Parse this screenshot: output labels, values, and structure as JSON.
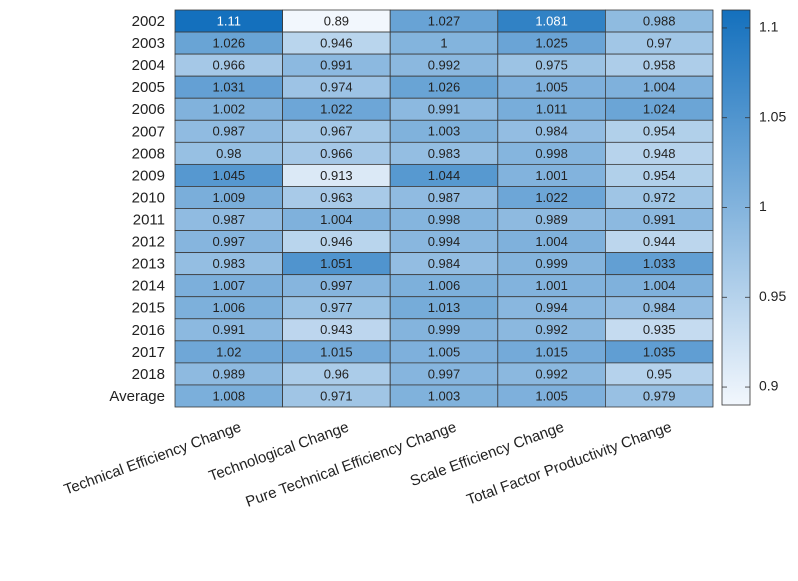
{
  "chart_data": {
    "type": "heatmap",
    "rows": [
      "2002",
      "2003",
      "2004",
      "2005",
      "2006",
      "2007",
      "2008",
      "2009",
      "2010",
      "2011",
      "2012",
      "2013",
      "2014",
      "2015",
      "2016",
      "2017",
      "2018",
      "Average"
    ],
    "columns": [
      "Technical Efficiency Change",
      "Technological Change",
      "Pure Technical Efficiency Change",
      "Scale Efficiency Change",
      "Total Factor Productivity Change"
    ],
    "values": [
      [
        1.11,
        0.89,
        1.027,
        1.081,
        0.988
      ],
      [
        1.026,
        0.946,
        1,
        1.025,
        0.97
      ],
      [
        0.966,
        0.991,
        0.992,
        0.975,
        0.958
      ],
      [
        1.031,
        0.974,
        1.026,
        1.005,
        1.004
      ],
      [
        1.002,
        1.022,
        0.991,
        1.011,
        1.024
      ],
      [
        0.987,
        0.967,
        1.003,
        0.984,
        0.954
      ],
      [
        0.98,
        0.966,
        0.983,
        0.998,
        0.948
      ],
      [
        1.045,
        0.913,
        1.044,
        1.001,
        0.954
      ],
      [
        1.009,
        0.963,
        0.987,
        1.022,
        0.972
      ],
      [
        0.987,
        1.004,
        0.998,
        0.989,
        0.991
      ],
      [
        0.997,
        0.946,
        0.994,
        1.004,
        0.944
      ],
      [
        0.983,
        1.051,
        0.984,
        0.999,
        1.033
      ],
      [
        1.007,
        0.997,
        1.006,
        1.001,
        1.004
      ],
      [
        1.006,
        0.977,
        1.013,
        0.994,
        0.984
      ],
      [
        0.991,
        0.943,
        0.999,
        0.992,
        0.935
      ],
      [
        1.02,
        1.015,
        1.005,
        1.015,
        1.035
      ],
      [
        0.989,
        0.96,
        0.997,
        0.992,
        0.95
      ],
      [
        1.008,
        0.971,
        1.003,
        1.005,
        0.979
      ]
    ],
    "clim": [
      0.89,
      1.11
    ],
    "cticks": [
      0.9,
      0.95,
      1,
      1.05,
      1.1
    ],
    "colors": [
      "#f2f7fd",
      "#1470bd"
    ]
  }
}
